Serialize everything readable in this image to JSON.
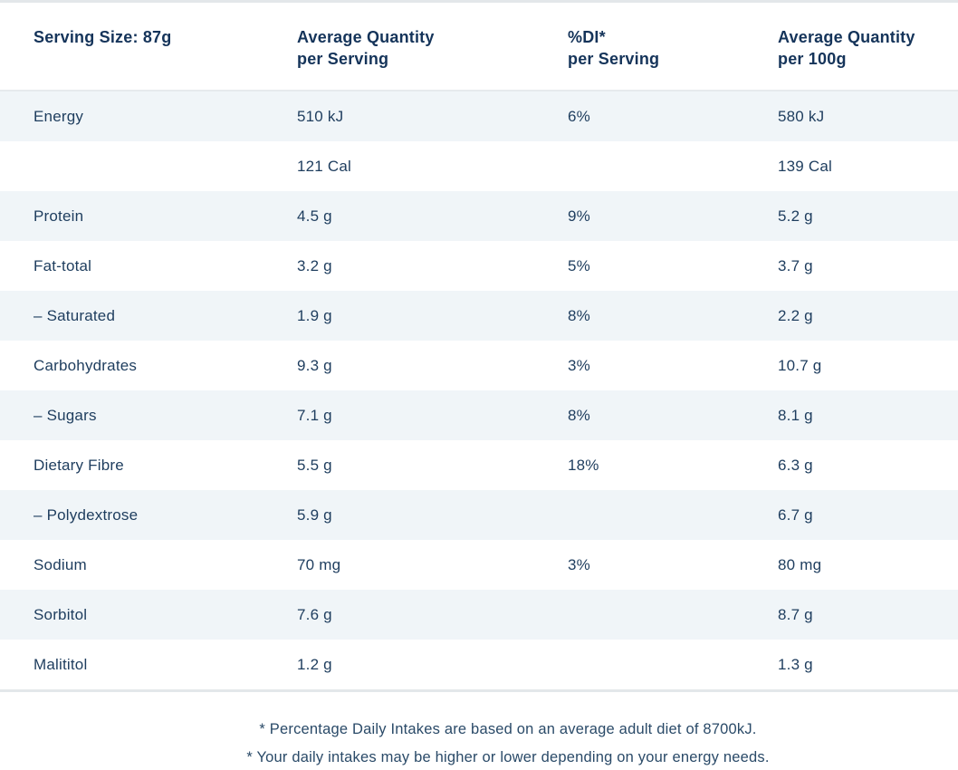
{
  "table": {
    "header": {
      "serving_size": "Serving Size: 87g",
      "col_avg_serving": "Average Quantity\nper Serving",
      "col_di": "%DI*\nper Serving",
      "col_avg_100g": "Average Quantity\nper 100g"
    },
    "rows": [
      {
        "label": "Energy",
        "per_serving": "510 kJ",
        "di": "6%",
        "per_100g": "580 kJ"
      },
      {
        "label": "",
        "per_serving": "121 Cal",
        "di": "",
        "per_100g": "139 Cal"
      },
      {
        "label": "Protein",
        "per_serving": "4.5 g",
        "di": "9%",
        "per_100g": "5.2 g"
      },
      {
        "label": "Fat-total",
        "per_serving": "3.2 g",
        "di": "5%",
        "per_100g": "3.7 g"
      },
      {
        "label": "– Saturated",
        "per_serving": "1.9 g",
        "di": "8%",
        "per_100g": "2.2 g"
      },
      {
        "label": "Carbohydrates",
        "per_serving": "9.3 g",
        "di": "3%",
        "per_100g": "10.7 g"
      },
      {
        "label": "– Sugars",
        "per_serving": "7.1 g",
        "di": "8%",
        "per_100g": "8.1 g"
      },
      {
        "label": "Dietary Fibre",
        "per_serving": "5.5 g",
        "di": "18%",
        "per_100g": "6.3 g"
      },
      {
        "label": "– Polydextrose",
        "per_serving": "5.9 g",
        "di": "",
        "per_100g": "6.7 g"
      },
      {
        "label": "Sodium",
        "per_serving": "70 mg",
        "di": "3%",
        "per_100g": "80 mg"
      },
      {
        "label": "Sorbitol",
        "per_serving": "7.6 g",
        "di": "",
        "per_100g": "8.7 g"
      },
      {
        "label": "Malititol",
        "per_serving": "1.2 g",
        "di": "",
        "per_100g": "1.3 g"
      }
    ],
    "footnotes": [
      "* Percentage Daily Intakes are based on an average adult diet of 8700kJ.",
      "* Your daily intakes may be higher or lower depending on your energy needs."
    ]
  },
  "colors": {
    "text_navy": "#1e3d5e",
    "header_navy": "#15345a",
    "row_stripe": "#f0f5f8",
    "divider": "#e3e7ea",
    "background": "#ffffff"
  }
}
